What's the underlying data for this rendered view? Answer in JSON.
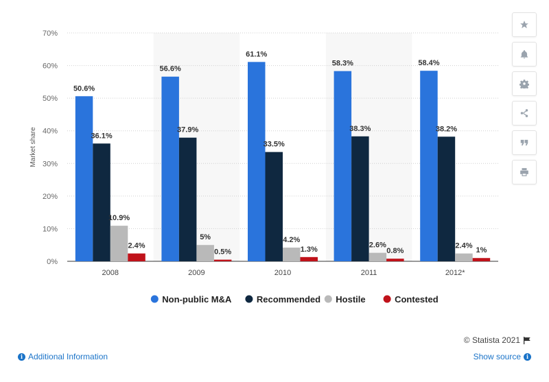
{
  "chart_data": {
    "type": "bar",
    "title": "",
    "xlabel": "",
    "ylabel": "Market share",
    "ylim": [
      0,
      70
    ],
    "yticks": [
      0,
      10,
      20,
      30,
      40,
      50,
      60,
      70
    ],
    "ytick_suffix": "%",
    "grid": true,
    "legend_position": "bottom",
    "categories": [
      "2008",
      "2009",
      "2010",
      "2011",
      "2012*"
    ],
    "series": [
      {
        "name": "Non-public M&A",
        "color": "#2a74dc",
        "values": [
          50.6,
          56.6,
          61.1,
          58.3,
          58.4
        ],
        "labels": [
          "50.6%",
          "56.6%",
          "61.1%",
          "58.3%",
          "58.4%"
        ]
      },
      {
        "name": "Recommended",
        "color": "#0f2840",
        "values": [
          36.1,
          37.9,
          33.5,
          38.3,
          38.2
        ],
        "labels": [
          "36.1%",
          "37.9%",
          "33.5%",
          "38.3%",
          "38.2%"
        ]
      },
      {
        "name": "Hostile",
        "color": "#b9b9b9",
        "values": [
          10.9,
          5,
          4.2,
          2.6,
          2.4
        ],
        "labels": [
          "10.9%",
          "5%",
          "4.2%",
          "2.6%",
          "2.4%"
        ]
      },
      {
        "name": "Contested",
        "color": "#c0121a",
        "values": [
          2.4,
          0.5,
          1.3,
          0.8,
          1
        ],
        "labels": [
          "2.4%",
          "0.5%",
          "1.3%",
          "0.8%",
          "1%"
        ]
      }
    ]
  },
  "toolbar": {
    "icons": [
      "star-icon",
      "bell-icon",
      "gear-icon",
      "share-icon",
      "quote-icon",
      "print-icon"
    ]
  },
  "footer": {
    "credit": "© Statista 2021",
    "additional_info": "Additional Information",
    "show_source": "Show source"
  }
}
